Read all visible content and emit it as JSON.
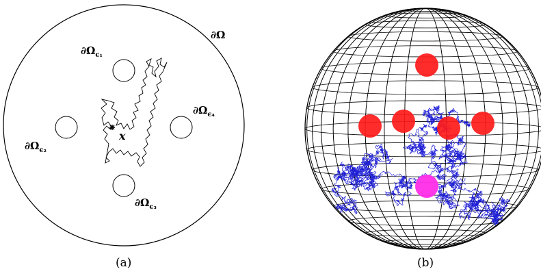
{
  "panel_a": {
    "boundary_label": "∂Ω",
    "hole_labels": [
      {
        "main": "∂Ω",
        "sub": "ϵ₁"
      },
      {
        "main": "∂Ω",
        "sub": "ϵ₂"
      },
      {
        "main": "∂Ω",
        "sub": "ϵ₃"
      },
      {
        "main": "∂Ω",
        "sub": "ϵ₄"
      }
    ],
    "start_label": "x",
    "caption": "(a)"
  },
  "panel_b": {
    "caption": "(b)",
    "colors": {
      "grid": "#000000",
      "path": "#1f1fd6",
      "absorbing_disks": "#ff1a1a",
      "start_disk": "#ff2ee8"
    }
  }
}
